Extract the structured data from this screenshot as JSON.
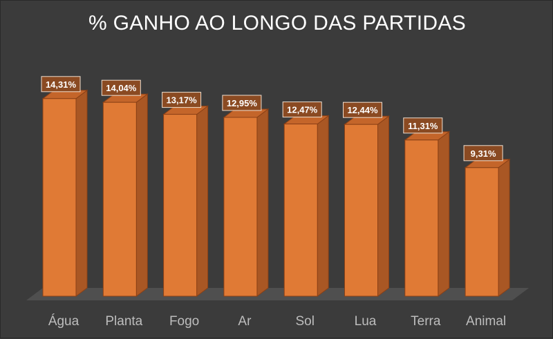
{
  "chart_data": {
    "type": "bar",
    "title": "% GANHO AO LONGO DAS PARTIDAS",
    "xlabel": "",
    "ylabel": "",
    "categories": [
      "Água",
      "Planta",
      "Fogo",
      "Ar",
      "Sol",
      "Lua",
      "Terra",
      "Animal"
    ],
    "values": [
      14.31,
      14.04,
      13.17,
      12.95,
      12.47,
      12.44,
      11.31,
      9.31
    ],
    "value_labels": [
      "14,31%",
      "14,04%",
      "13,17%",
      "12,95%",
      "12,47%",
      "12,44%",
      "11,31%",
      "9,31%"
    ],
    "ylim": [
      0,
      15
    ],
    "grid": false,
    "legend": "none",
    "style": "3d-column",
    "colors": {
      "background": "#3b3b3b",
      "bar_front": "#e07a35",
      "bar_side": "#a95724",
      "bar_top": "#c4652a",
      "bar_outline": "#8a4016",
      "floor": "#4f4f4f",
      "label_box": "#8a4a22",
      "label_border": "#f0e0d0",
      "title": "#ffffff",
      "category_text": "#bdbdbd"
    }
  }
}
